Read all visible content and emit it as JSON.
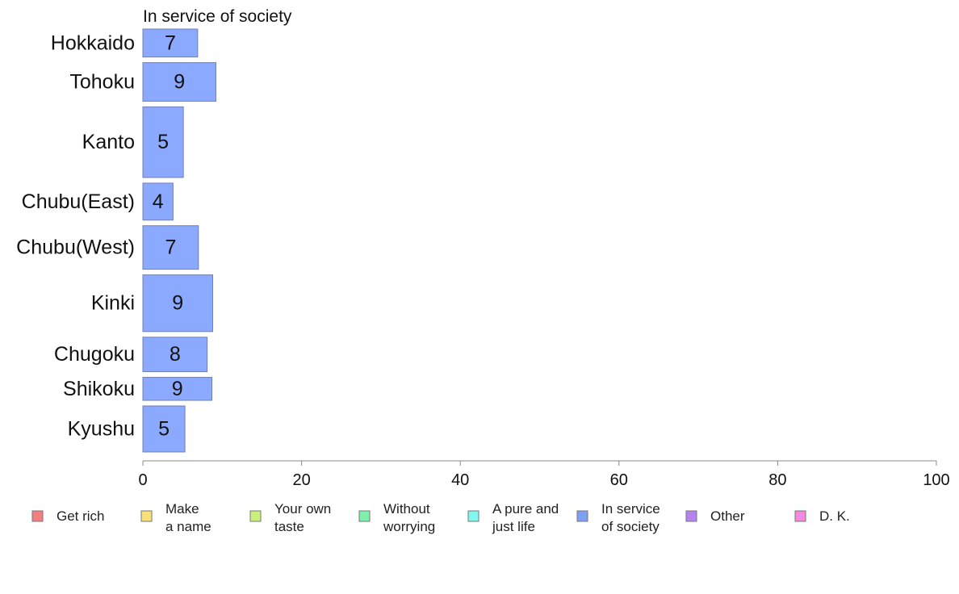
{
  "chart_data": {
    "type": "bar",
    "orientation": "horizontal",
    "title": "In service of society",
    "categories": [
      "Hokkaido",
      "Tohoku",
      "Kanto",
      "Chubu(East)",
      "Chubu(West)",
      "Kinki",
      "Chugoku",
      "Shikoku",
      "Kyushu"
    ],
    "values": [
      7,
      9,
      5,
      4,
      7,
      9,
      8,
      9,
      5
    ],
    "bar_values_precise": [
      6.9,
      9.2,
      5.1,
      3.8,
      7.0,
      8.8,
      8.1,
      8.7,
      5.3
    ],
    "relative_bar_weights": [
      34,
      47,
      86,
      45,
      53,
      69,
      42,
      28,
      56
    ],
    "xlim": [
      0,
      100
    ],
    "xticks": [
      0,
      20,
      40,
      60,
      80,
      100
    ],
    "xlabel": "",
    "ylabel": "",
    "grid": false,
    "bar_color": "#8aa9ff",
    "bar_edge_color": "#6f7fb5",
    "legend": {
      "placement": "bottom",
      "items": [
        {
          "label": "Get rich",
          "color": "#f08080"
        },
        {
          "label": "Make\na name",
          "color": "#f7e27a"
        },
        {
          "label": "Your own\ntaste",
          "color": "#c8f07a"
        },
        {
          "label": "Without\nworrying",
          "color": "#80f0a8"
        },
        {
          "label": "A pure and\njust life",
          "color": "#80f7f2"
        },
        {
          "label": "In service\nof society",
          "color": "#7ea0f0"
        },
        {
          "label": "Other",
          "color": "#b583f0"
        },
        {
          "label": "D. K.",
          "color": "#f28ae0"
        }
      ]
    }
  }
}
